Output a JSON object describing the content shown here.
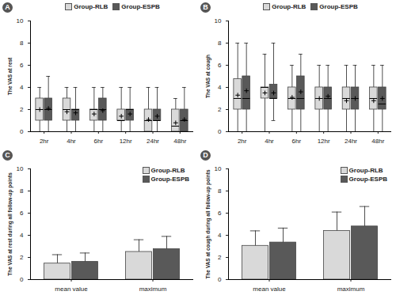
{
  "chart_data": [
    {
      "type": "box",
      "panel_label": "A",
      "y_label": "The VAS at rest",
      "categories": [
        "2hr",
        "4hr",
        "6hr",
        "12hr",
        "24hr",
        "48hr"
      ],
      "series": [
        {
          "name": "Group-RLB",
          "color": "#d9d9d9",
          "min": [
            0,
            0,
            0,
            0,
            0,
            0
          ],
          "q1": [
            1,
            1,
            1,
            1,
            0,
            0
          ],
          "median": [
            2,
            2,
            2,
            1,
            1,
            0.5
          ],
          "q3": [
            3,
            3,
            2,
            2,
            2,
            2
          ],
          "max": [
            4,
            4,
            4,
            4,
            4,
            3
          ],
          "mean": [
            2,
            1.8,
            1.6,
            1.4,
            1.1,
            0.8
          ]
        },
        {
          "name": "Group-ESPB",
          "color": "#595959",
          "min": [
            0,
            0,
            0,
            0,
            0,
            0
          ],
          "q1": [
            1,
            1,
            1,
            1,
            1,
            0
          ],
          "median": [
            2,
            2,
            2,
            2,
            1,
            1
          ],
          "q3": [
            3,
            2,
            3,
            2,
            2,
            2
          ],
          "max": [
            5,
            4,
            4,
            4,
            4,
            4
          ],
          "mean": [
            2.1,
            1.7,
            1.9,
            1.6,
            1.4,
            1.1
          ]
        }
      ],
      "ylim": [
        0,
        10
      ],
      "yticks": [
        0,
        2,
        4,
        6,
        8,
        10
      ],
      "legend": "top"
    },
    {
      "type": "box",
      "panel_label": "B",
      "y_label": "The VAS at cough",
      "categories": [
        "2hr",
        "4hr",
        "6hr",
        "12hr",
        "24hr",
        "48hr"
      ],
      "series": [
        {
          "name": "Group-RLB",
          "color": "#d9d9d9",
          "min": [
            0,
            0,
            0,
            0,
            0,
            0
          ],
          "q1": [
            2,
            3,
            2,
            2,
            2,
            2
          ],
          "median": [
            3,
            4,
            3,
            3,
            3,
            3
          ],
          "q3": [
            4.75,
            4,
            4,
            4,
            4,
            4
          ],
          "max": [
            8,
            7,
            6,
            6,
            6,
            6
          ],
          "mean": [
            3.3,
            3.5,
            3.1,
            3,
            2.8,
            2.8
          ]
        },
        {
          "name": "Group-ESPB",
          "color": "#595959",
          "min": [
            0,
            1,
            0,
            0,
            0,
            0
          ],
          "q1": [
            2,
            3,
            2,
            2,
            2,
            2
          ],
          "median": [
            3,
            3,
            3,
            3,
            3,
            2.5
          ],
          "q3": [
            5,
            4.25,
            5,
            4,
            4,
            4
          ],
          "max": [
            8,
            8,
            7,
            6,
            6,
            6
          ],
          "mean": [
            3.7,
            3.5,
            3.6,
            3.2,
            3,
            3
          ]
        }
      ],
      "ylim": [
        0,
        10
      ],
      "yticks": [
        0,
        2,
        4,
        6,
        8,
        10
      ],
      "legend": "top"
    },
    {
      "type": "bar",
      "panel_label": "C",
      "y_label": "The VAS at rest during all follow-up points",
      "categories": [
        "mean value",
        "maximum"
      ],
      "series": [
        {
          "name": "Group-RLB",
          "color": "#d9d9d9",
          "values": [
            1.45,
            2.5
          ],
          "errors": [
            0.8,
            1.1
          ]
        },
        {
          "name": "Group-ESPB",
          "color": "#595959",
          "values": [
            1.6,
            2.75
          ],
          "errors": [
            0.8,
            1.15
          ]
        }
      ],
      "ylim": [
        0,
        10
      ],
      "yticks": [
        0,
        2,
        4,
        6,
        8,
        10
      ],
      "legend": "top-right"
    },
    {
      "type": "bar",
      "panel_label": "D",
      "y_label": "The VAS at cough during all follow-up points",
      "categories": [
        "mean value",
        "maximum"
      ],
      "series": [
        {
          "name": "Group-RLB",
          "color": "#d9d9d9",
          "values": [
            3.05,
            4.4
          ],
          "errors": [
            1.35,
            1.7
          ]
        },
        {
          "name": "Group-ESPB",
          "color": "#595959",
          "values": [
            3.35,
            4.8
          ],
          "errors": [
            1.3,
            1.8
          ]
        }
      ],
      "ylim": [
        0,
        10
      ],
      "yticks": [
        0,
        2,
        4,
        6,
        8,
        10
      ],
      "legend": "top-right"
    }
  ]
}
